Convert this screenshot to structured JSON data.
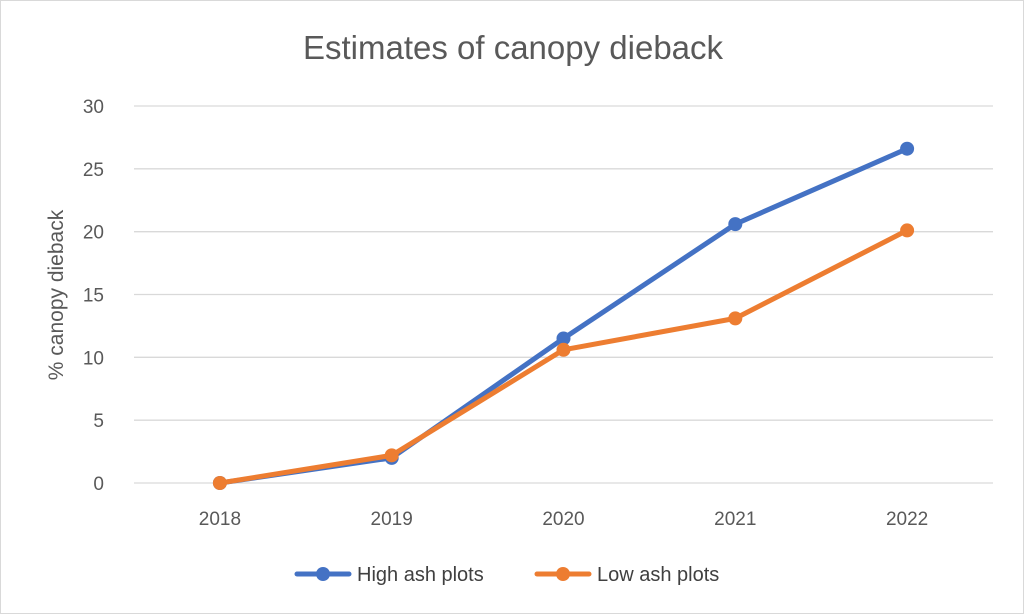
{
  "chart_data": {
    "type": "line",
    "title": "Estimates of canopy dieback",
    "xlabel": "",
    "ylabel": "% canopy dieback",
    "categories": [
      "2018",
      "2019",
      "2020",
      "2021",
      "2022"
    ],
    "ylim": [
      0,
      30
    ],
    "yticks": [
      0,
      5,
      10,
      15,
      20,
      25,
      30
    ],
    "grid": true,
    "legend_position": "bottom",
    "series": [
      {
        "name": "High ash plots",
        "color": "#4472c4",
        "values": [
          0,
          2.0,
          11.5,
          20.6,
          26.6
        ]
      },
      {
        "name": "Low ash plots",
        "color": "#ed7d31",
        "values": [
          0,
          2.2,
          10.6,
          13.1,
          20.1
        ]
      }
    ]
  }
}
